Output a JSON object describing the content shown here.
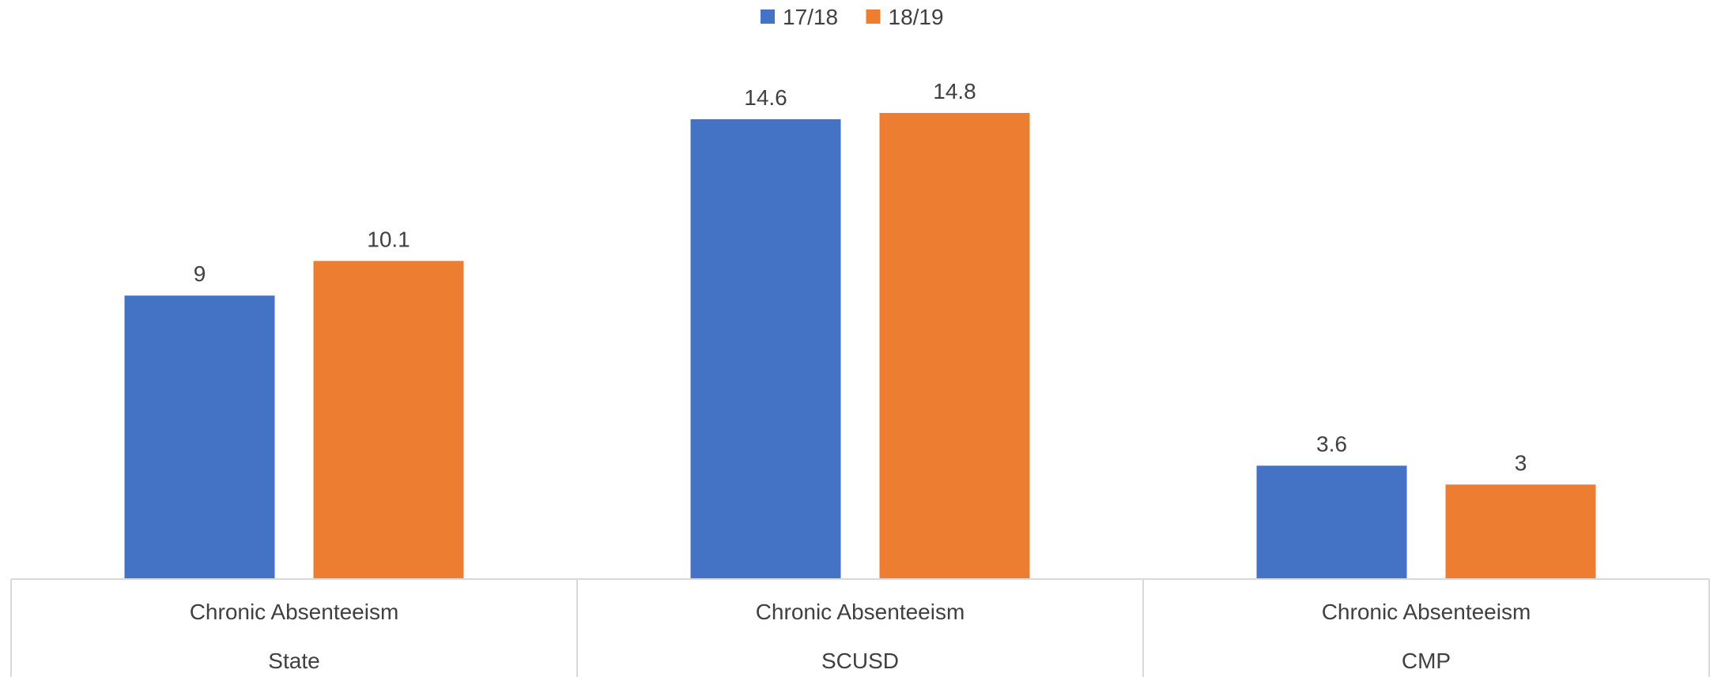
{
  "chart_data": {
    "type": "bar",
    "categories": [
      [
        "Chronic Absenteeism",
        "State"
      ],
      [
        "Chronic Absenteeism",
        "SCUSD"
      ],
      [
        "Chronic Absenteeism",
        "CMP"
      ]
    ],
    "series": [
      {
        "name": "17/18",
        "color": "#4472C4",
        "values": [
          9,
          14.6,
          3.6
        ]
      },
      {
        "name": "18/19",
        "color": "#ED7D31",
        "values": [
          10.1,
          14.8,
          3
        ]
      }
    ],
    "data_labels": [
      [
        "9",
        "14.6",
        "3.6"
      ],
      [
        "10.1",
        "14.8",
        "3"
      ]
    ],
    "legend": {
      "position": "top"
    },
    "ylim": [
      0,
      15.2
    ],
    "grid": false,
    "title": "",
    "xlabel": "",
    "ylabel": ""
  }
}
